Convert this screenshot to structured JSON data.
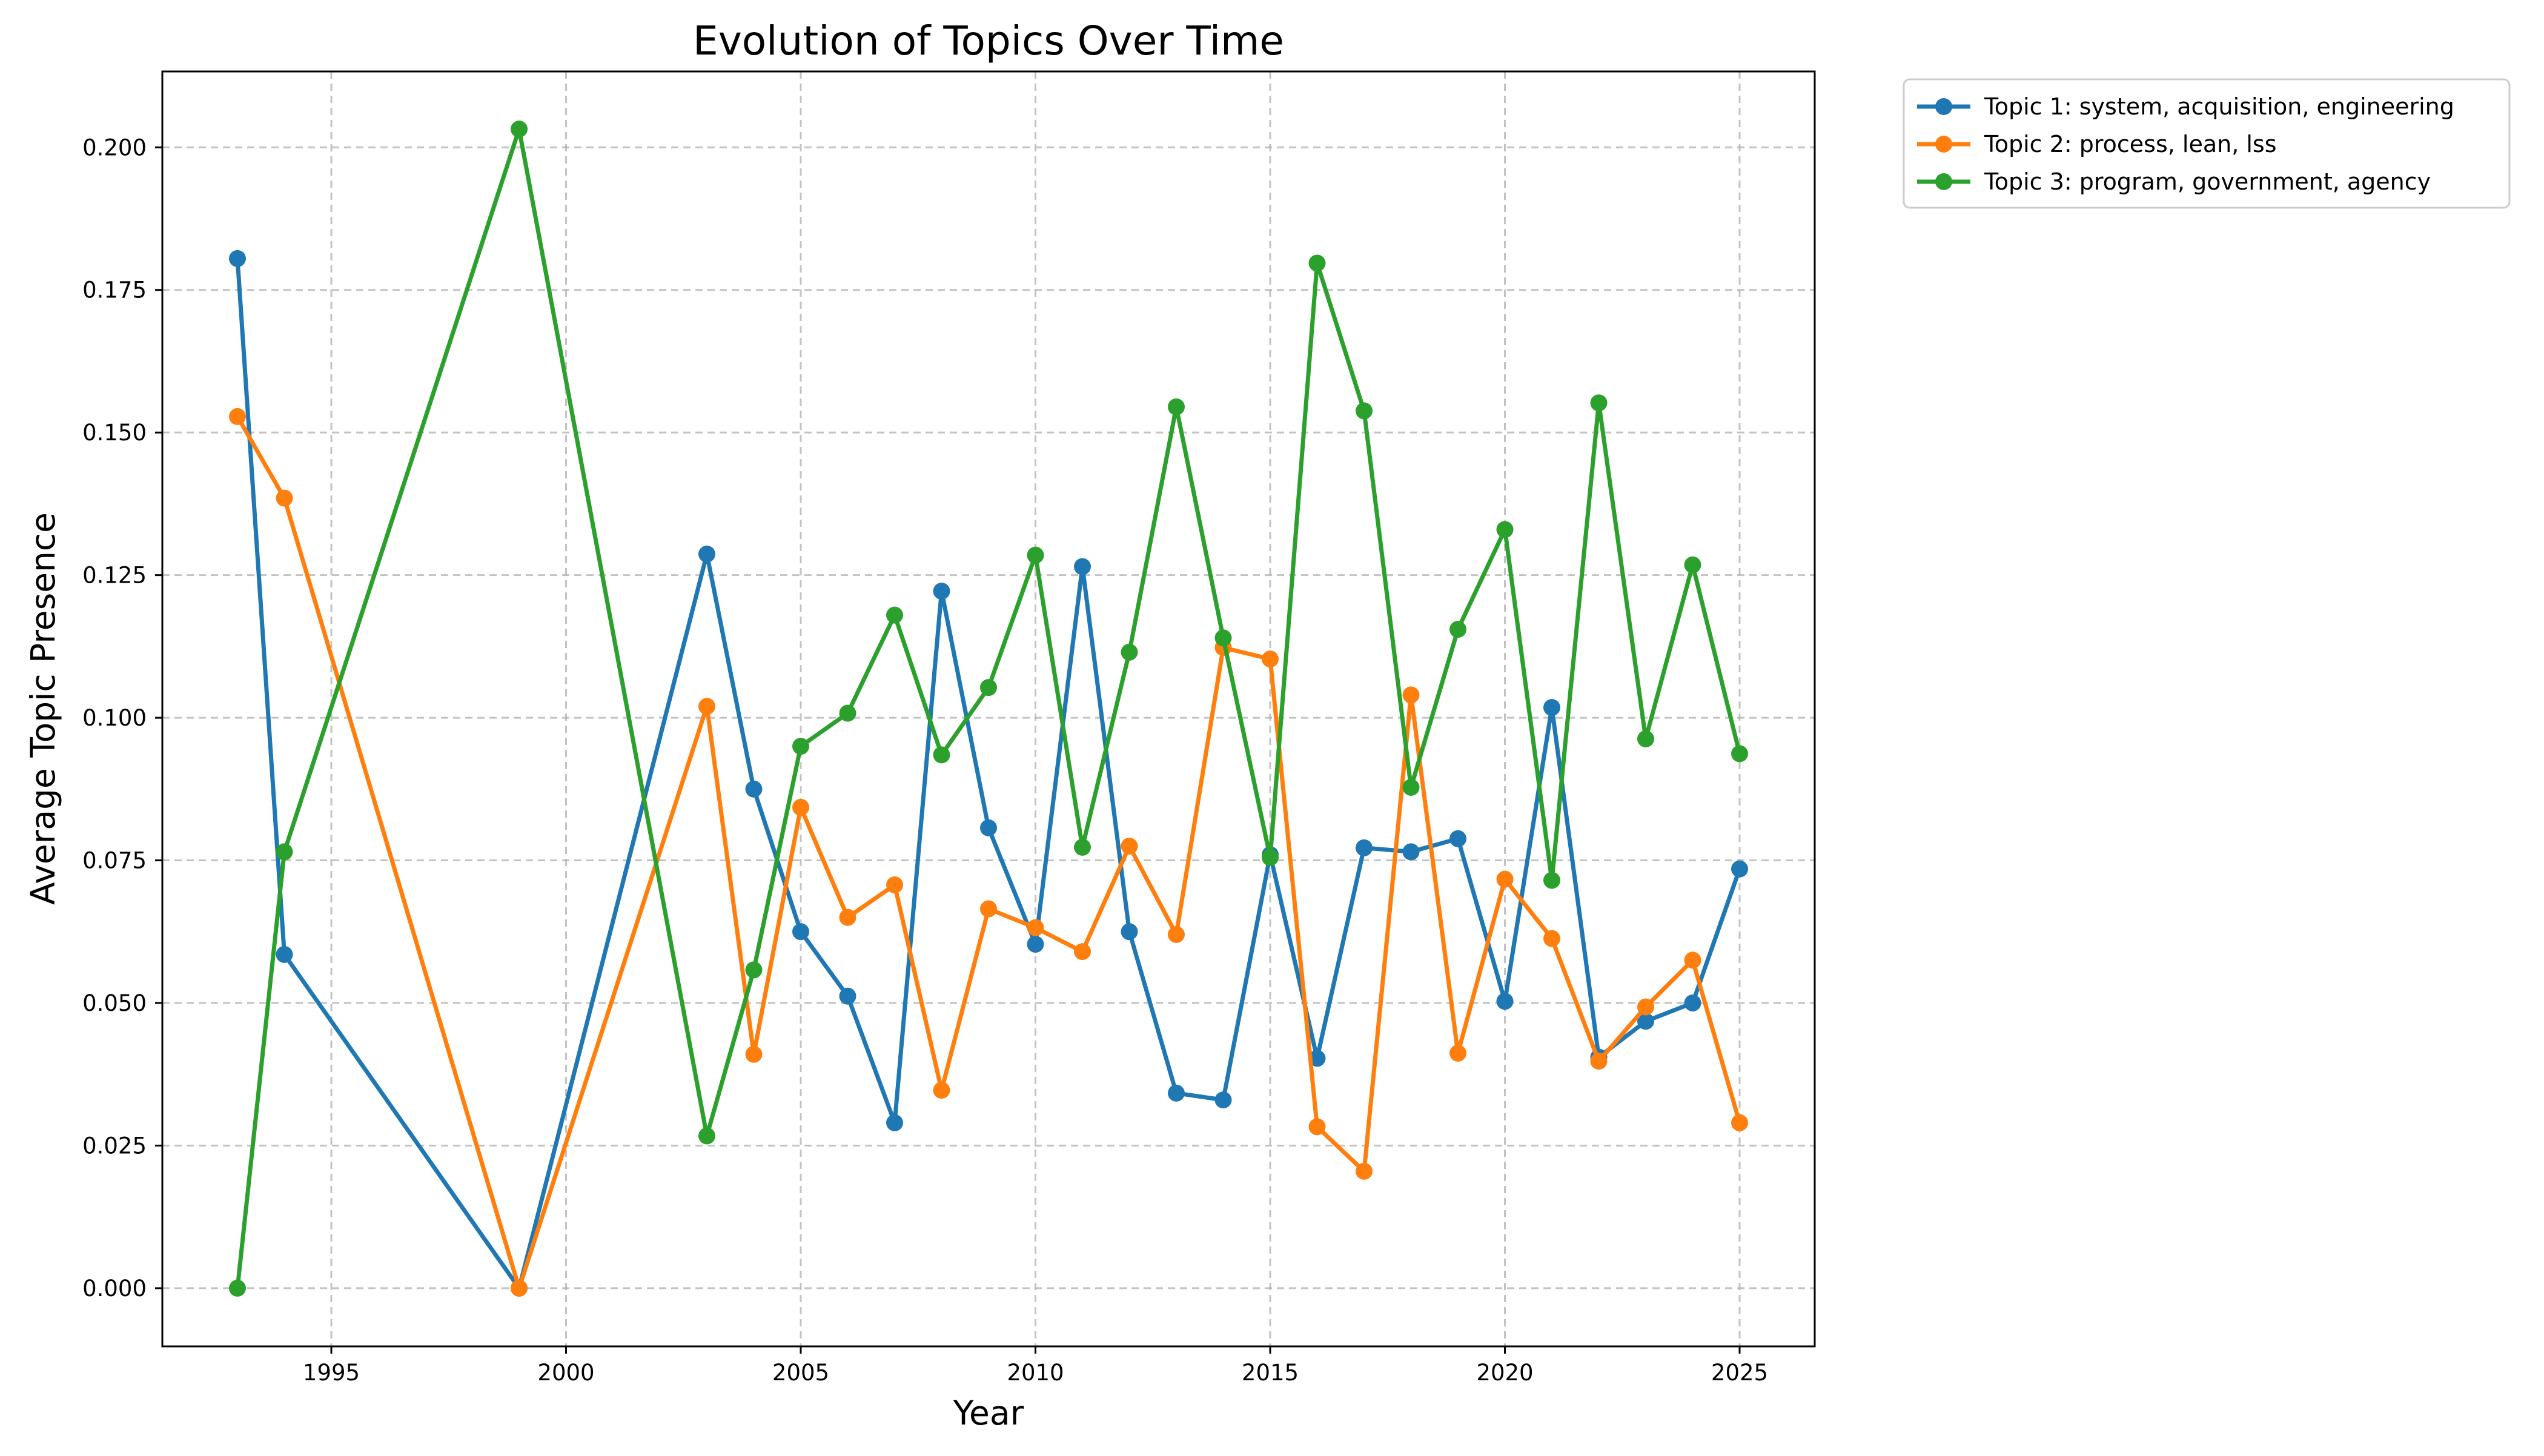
{
  "chart_data": {
    "type": "line",
    "title": "Evolution of Topics Over Time",
    "xlabel": "Year",
    "ylabel": "Average Topic Presence",
    "xlim": [
      1991.4,
      2026.6
    ],
    "ylim": [
      -0.0102,
      0.2133
    ],
    "x_ticks": [
      1995,
      2000,
      2005,
      2010,
      2015,
      2020,
      2025
    ],
    "y_ticks": [
      0.0,
      0.025,
      0.05,
      0.075,
      0.1,
      0.125,
      0.15,
      0.175,
      0.2
    ],
    "y_tick_labels": [
      "0.000",
      "0.025",
      "0.050",
      "0.075",
      "0.100",
      "0.125",
      "0.150",
      "0.175",
      "0.200"
    ],
    "grid": true,
    "legend_position": "outside-top-right",
    "x": [
      1993,
      1994,
      1999,
      2003,
      2004,
      2005,
      2006,
      2007,
      2008,
      2009,
      2010,
      2011,
      2012,
      2013,
      2014,
      2015,
      2016,
      2017,
      2018,
      2019,
      2020,
      2021,
      2022,
      2023,
      2024,
      2025
    ],
    "series": [
      {
        "name": "Topic 1: system, acquisition, engineering",
        "color": "#1f77b4",
        "values": [
          0.1805,
          0.0585,
          0.0,
          0.1287,
          0.0875,
          0.0625,
          0.0512,
          0.029,
          0.1222,
          0.0807,
          0.0603,
          0.1265,
          0.0625,
          0.0342,
          0.033,
          0.076,
          0.0403,
          0.0772,
          0.0765,
          0.0788,
          0.0503,
          0.1018,
          0.0405,
          0.0468,
          0.05,
          0.0735
        ]
      },
      {
        "name": "Topic 2: process, lean, lss",
        "color": "#ff7f0e",
        "values": [
          0.1528,
          0.1385,
          0.0,
          0.102,
          0.041,
          0.0843,
          0.065,
          0.0707,
          0.0347,
          0.0665,
          0.0632,
          0.059,
          0.0775,
          0.062,
          0.1123,
          0.1103,
          0.0283,
          0.0205,
          0.104,
          0.0412,
          0.0717,
          0.0613,
          0.0398,
          0.0493,
          0.0575,
          0.029
        ]
      },
      {
        "name": "Topic 3: program, government, agency",
        "color": "#2ca02c",
        "values": [
          0.0,
          0.0765,
          0.2032,
          0.0267,
          0.0558,
          0.095,
          0.1008,
          0.118,
          0.0935,
          0.1053,
          0.1285,
          0.0773,
          0.1115,
          0.1545,
          0.114,
          0.0755,
          0.1797,
          0.1538,
          0.0878,
          0.1155,
          0.133,
          0.0715,
          0.1552,
          0.0963,
          0.1268,
          0.0937
        ]
      }
    ]
  }
}
